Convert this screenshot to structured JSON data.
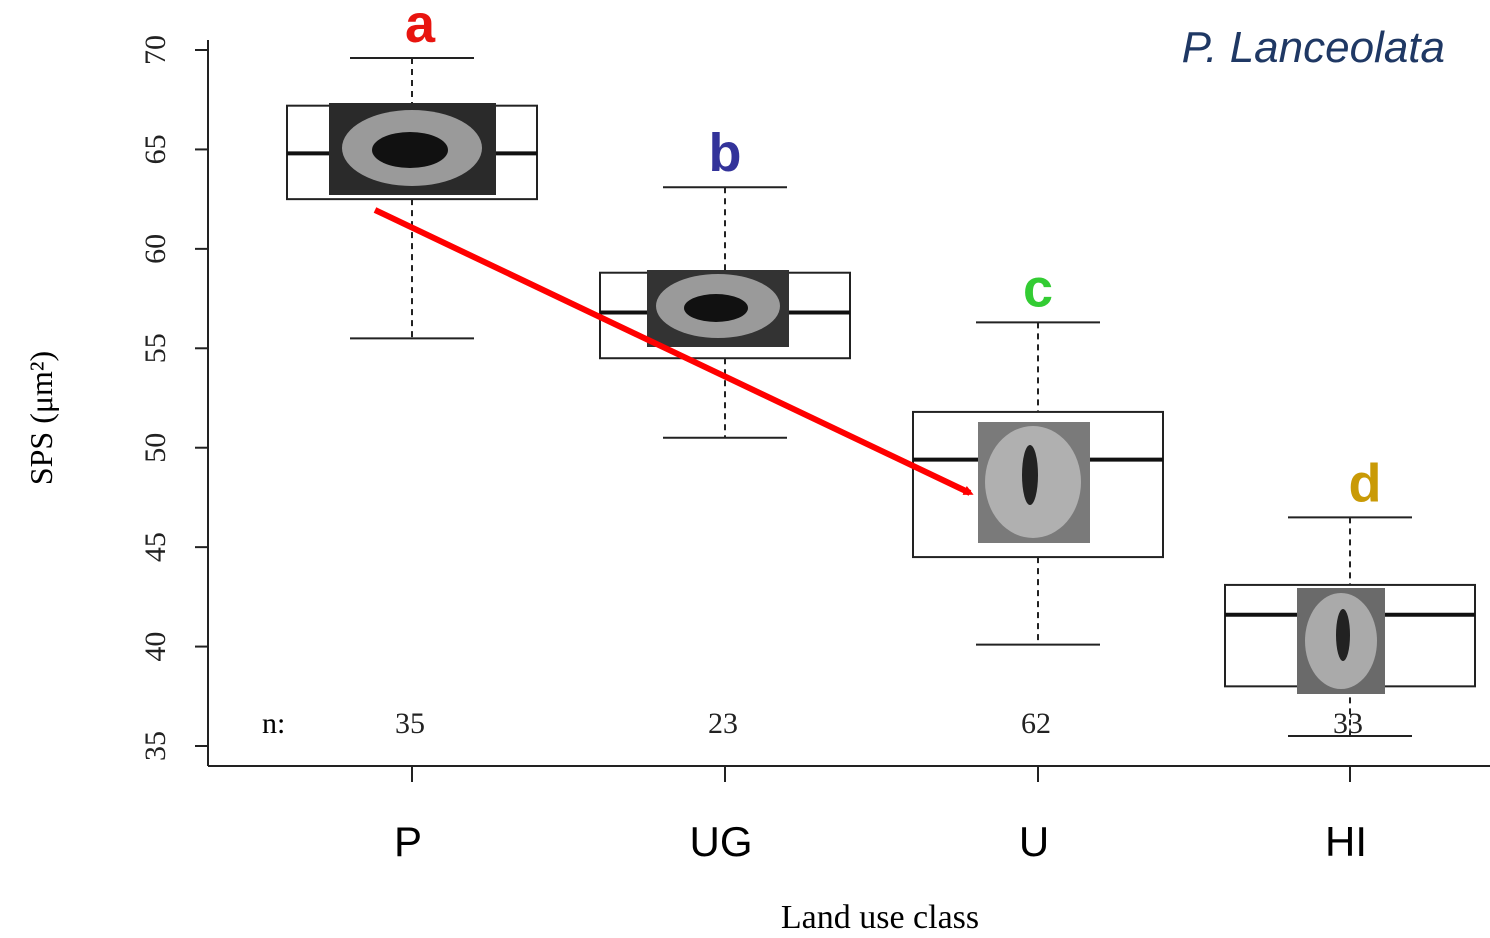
{
  "chart_data": {
    "type": "box",
    "title": "P. Lanceolata",
    "y_label": "SPS (μm²)",
    "x_label": "Land use class",
    "categories": [
      "P",
      "UG",
      "U",
      "HI"
    ],
    "boxes": [
      {
        "low": 55.5,
        "q1": 62.5,
        "median": 64.8,
        "q3": 67.2,
        "high": 69.6
      },
      {
        "low": 50.5,
        "q1": 54.5,
        "median": 56.8,
        "q3": 58.8,
        "high": 63.1
      },
      {
        "low": 40.1,
        "q1": 44.5,
        "median": 49.4,
        "q3": 51.8,
        "high": 56.3
      },
      {
        "low": 35.5,
        "q1": 38.0,
        "median": 41.6,
        "q3": 43.1,
        "high": 46.5
      }
    ],
    "group_labels": [
      {
        "text": "a",
        "color": "#e8140f"
      },
      {
        "text": "b",
        "color": "#33339a"
      },
      {
        "text": "c",
        "color": "#33cc33"
      },
      {
        "text": "d",
        "color": "#c99a06"
      }
    ],
    "n_label": "n:",
    "n_values": [
      35,
      23,
      62,
      33
    ],
    "ylim": [
      35,
      70
    ],
    "yticks": [
      35,
      40,
      45,
      50,
      55,
      60,
      65,
      70
    ],
    "arrow_color": "#ff0000",
    "title_color": "#1f3864"
  }
}
